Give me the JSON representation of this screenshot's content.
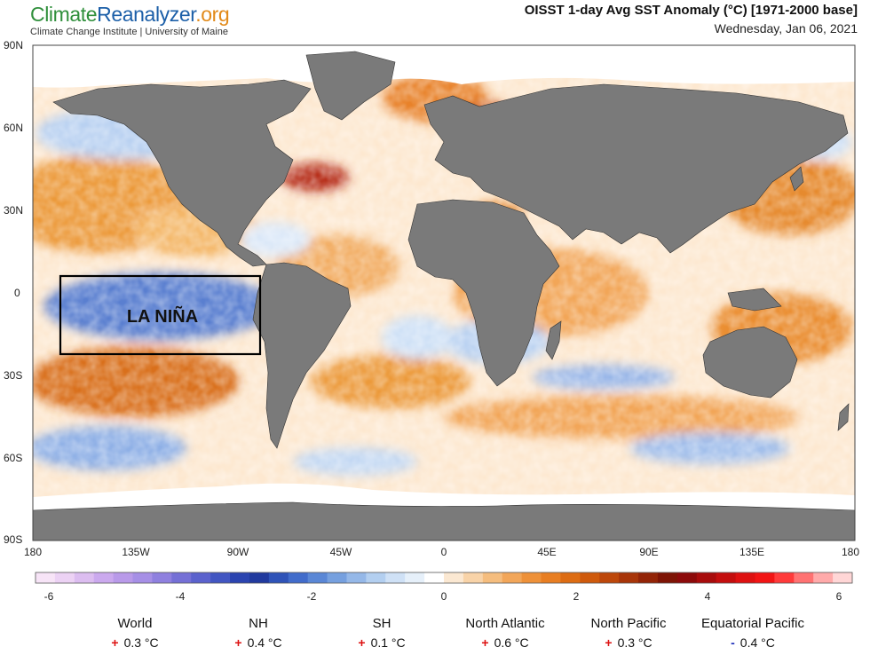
{
  "header": {
    "logo_part1": "Climate",
    "logo_part2": "Reanalyzer",
    "logo_part3": ".org",
    "logo_sub": "Climate Change Institute | University of Maine",
    "title": "OISST 1-day Avg SST Anomaly (°C) [1971-2000 base]",
    "date": "Wednesday, Jan 06, 2021"
  },
  "map": {
    "lat_labels": [
      "90N",
      "60N",
      "30N",
      "0",
      "30S",
      "60S",
      "90S"
    ],
    "lon_labels": [
      "180",
      "135W",
      "90W",
      "45W",
      "0",
      "45E",
      "90E",
      "135E",
      "180"
    ],
    "annotation": "LA NIÑA",
    "colors": {
      "land": "#7a7a7a",
      "ice": "#ffffff",
      "warm": "#e07b1f",
      "cool": "#4d74c8",
      "box": "#000000"
    }
  },
  "colorbar": {
    "ticks": [
      "-6",
      "-4",
      "-2",
      "0",
      "2",
      "4",
      "6"
    ],
    "range": [
      -6.5,
      6.5
    ],
    "colors": [
      "#f7e4f7",
      "#ecd2f4",
      "#dcbdf0",
      "#cba9ee",
      "#b99ae9",
      "#a68fe6",
      "#8f80df",
      "#7570d6",
      "#5b62cd",
      "#4256c2",
      "#2b44b0",
      "#213a9e",
      "#2f53b8",
      "#416ccb",
      "#5a87d6",
      "#76a0df",
      "#95b8e8",
      "#b3cff0",
      "#cfe1f6",
      "#e6f0fa",
      "#ffffff",
      "#fbe8d2",
      "#f8d3a8",
      "#f5bd7e",
      "#f2a659",
      "#ee9139",
      "#e87e22",
      "#dd6c13",
      "#cf5a0c",
      "#bd470a",
      "#a83509",
      "#932407",
      "#7e1405",
      "#8c0a0a",
      "#a80c0c",
      "#c40e0e",
      "#de1111",
      "#f21414",
      "#ff3a3a",
      "#ff7272",
      "#ffaaaa",
      "#ffd6d6"
    ]
  },
  "stats": [
    {
      "label": "World",
      "sign": "+",
      "value": "0.3 °C"
    },
    {
      "label": "NH",
      "sign": "+",
      "value": "0.4 °C"
    },
    {
      "label": "SH",
      "sign": "+",
      "value": "0.1 °C"
    },
    {
      "label": "North Atlantic",
      "sign": "+",
      "value": "0.6 °C"
    },
    {
      "label": "North Pacific",
      "sign": "+",
      "value": "0.3 °C"
    },
    {
      "label": "Equatorial Pacific",
      "sign": "-",
      "value": "0.4 °C"
    }
  ]
}
